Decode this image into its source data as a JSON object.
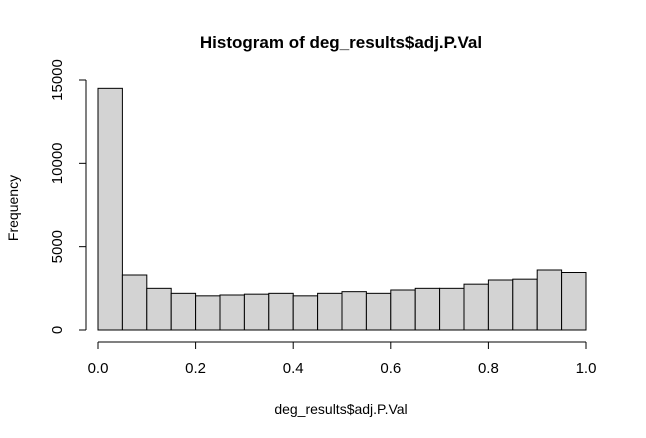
{
  "chart_data": {
    "type": "bar",
    "title": "Histogram of deg_results$adj.P.Val",
    "xlabel": "deg_results$adj.P.Val",
    "ylabel": "Frequency",
    "bin_edges": [
      0.0,
      0.05,
      0.1,
      0.15,
      0.2,
      0.25,
      0.3,
      0.35,
      0.4,
      0.45,
      0.5,
      0.55,
      0.6,
      0.65,
      0.7,
      0.75,
      0.8,
      0.85,
      0.9,
      0.95,
      1.0
    ],
    "values": [
      14500,
      3300,
      2500,
      2200,
      2050,
      2100,
      2150,
      2200,
      2050,
      2200,
      2300,
      2200,
      2400,
      2500,
      2500,
      2750,
      3000,
      3050,
      3600,
      3450
    ],
    "xlim": [
      0,
      1
    ],
    "ylim": [
      0,
      15000
    ],
    "x_ticks": [
      0.0,
      0.2,
      0.4,
      0.6,
      0.8,
      1.0
    ],
    "x_tick_labels": [
      "0.0",
      "0.2",
      "0.4",
      "0.6",
      "0.8",
      "1.0"
    ],
    "y_ticks": [
      0,
      5000,
      10000,
      15000
    ],
    "y_tick_labels": [
      "0",
      "5000",
      "10000",
      "15000"
    ],
    "grid": false,
    "bar_color": "#d3d3d3"
  }
}
